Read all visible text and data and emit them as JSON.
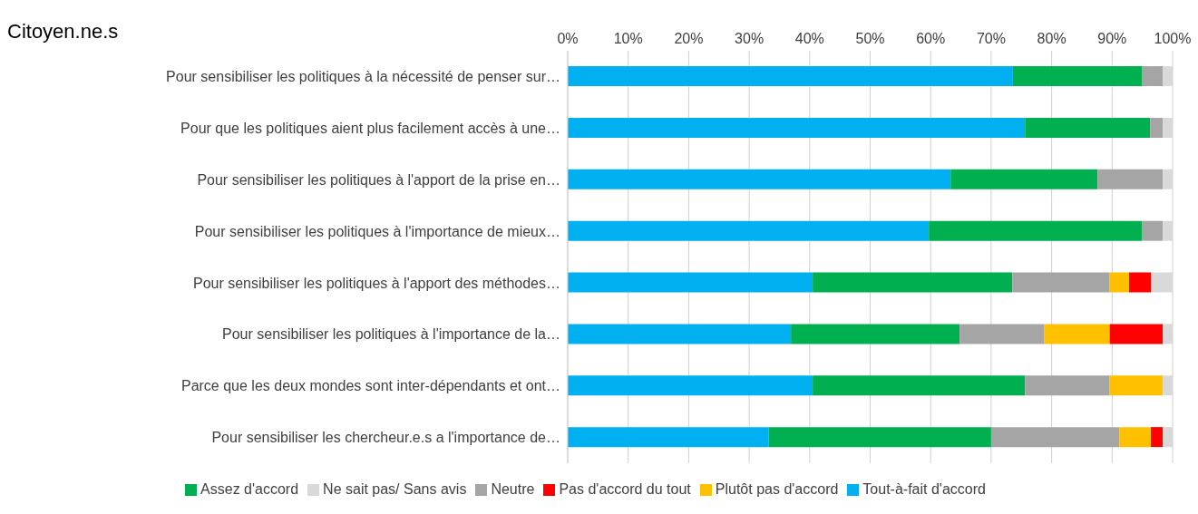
{
  "chart_data": {
    "type": "bar",
    "orientation": "horizontal",
    "stacked": true,
    "title": "Citoyen.ne.s",
    "categories": [
      "Pour sensibiliser les politiques à la nécessité de penser sur…",
      "Pour que les politiques aient plus facilement accès à une…",
      "Pour sensibiliser les politiques à l'apport de la prise en…",
      "Pour sensibiliser les politiques à l'importance de mieux…",
      "Pour sensibiliser les politiques à l'apport des méthodes…",
      "Pour sensibiliser les politiques à l'importance de la…",
      "Parce que les deux mondes sont inter-dépendants et ont…",
      "Pour sensibiliser les chercheur.e.s a l'importance de…"
    ],
    "series": [
      {
        "name": "Tout-à-fait d'accord",
        "color": "#00b0f0",
        "values": [
          73.6,
          75.6,
          63.3,
          59.7,
          40.5,
          36.9,
          40.5,
          33.2
        ]
      },
      {
        "name": "Assez d'accord",
        "color": "#00b050",
        "values": [
          21.3,
          20.7,
          24.3,
          35.2,
          33.0,
          27.9,
          35.1,
          36.8
        ]
      },
      {
        "name": "Neutre",
        "color": "#a5a5a5",
        "values": [
          3.5,
          2.1,
          10.8,
          3.5,
          16.1,
          14.0,
          14.0,
          21.2
        ]
      },
      {
        "name": "Plutôt pas d'accord",
        "color": "#ffc000",
        "values": [
          0,
          0,
          0,
          0,
          3.2,
          10.8,
          8.8,
          5.2
        ]
      },
      {
        "name": "Pas d'accord du tout",
        "color": "#ff0000",
        "values": [
          0,
          0,
          0,
          0,
          3.6,
          8.8,
          0,
          2.0
        ]
      },
      {
        "name": "Ne sait pas/ Sans avis",
        "color": "#d9d9d9",
        "values": [
          1.6,
          1.6,
          1.6,
          1.6,
          3.6,
          1.6,
          1.6,
          1.6
        ]
      }
    ],
    "xlim": [
      0,
      100
    ],
    "xticks": [
      {
        "value": 0,
        "label": "0%"
      },
      {
        "value": 10,
        "label": "10%"
      },
      {
        "value": 20,
        "label": "20%"
      },
      {
        "value": 30,
        "label": "30%"
      },
      {
        "value": 40,
        "label": "40%"
      },
      {
        "value": 50,
        "label": "50%"
      },
      {
        "value": 60,
        "label": "60%"
      },
      {
        "value": 70,
        "label": "70%"
      },
      {
        "value": 80,
        "label": "80%"
      },
      {
        "value": 90,
        "label": "90%"
      },
      {
        "value": 100,
        "label": "100%"
      }
    ],
    "grid": "x",
    "legend": "bottom"
  }
}
